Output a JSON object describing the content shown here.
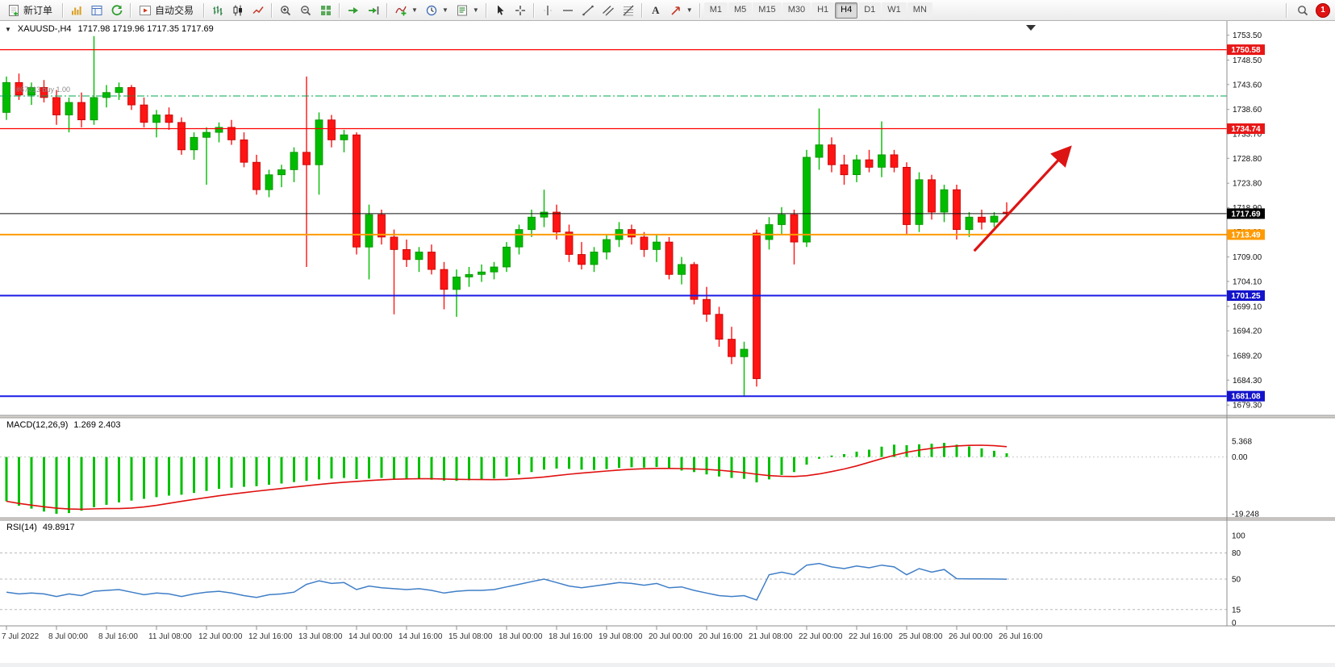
{
  "toolbar": {
    "new_order": "新订单",
    "autotrading": "自动交易",
    "text_tool": "A",
    "timeframes": [
      "M1",
      "M5",
      "M15",
      "M30",
      "H1",
      "H4",
      "D1",
      "W1",
      "MN"
    ],
    "active_timeframe": "H4",
    "badge_count": "1"
  },
  "chart": {
    "title": "XAUUSD-,H4",
    "ohlc": "1717.98 1719.96 1717.35 1717.69",
    "order_label": "#67013 buy 1.00"
  },
  "macd": {
    "label": "MACD(12,26,9)",
    "values": "1.269 2.403"
  },
  "rsi": {
    "label": "RSI(14)",
    "value": "49.8917"
  },
  "chart_data": {
    "type": "candlestick",
    "symbol": "XAUUSD-",
    "timeframe": "H4",
    "colors": {
      "up": "#00bc00",
      "up_edge": "#089000",
      "down": "#ff1414",
      "down_edge": "#c00000",
      "macd_hist": "#00c000",
      "macd_signal": "#e01010",
      "rsi_line": "#3f7ec7",
      "arrow": "#dd1414"
    },
    "price_axis": {
      "max": 1755.7,
      "min": 1678.2
    },
    "y_ticks": [
      "1753.50",
      "1748.50",
      "1743.60",
      "1738.60",
      "1733.70",
      "1728.80",
      "1723.80",
      "1718.90",
      "1714.00",
      "1709.00",
      "1704.10",
      "1699.10",
      "1694.20",
      "1689.20",
      "1684.30",
      "1679.30"
    ],
    "x_label_step": 4,
    "x_labels": [
      "7 Jul 2022",
      "8 Jul 00:00",
      "8 Jul 16:00",
      "11 Jul 08:00",
      "12 Jul 00:00",
      "12 Jul 16:00",
      "13 Jul 08:00",
      "14 Jul 00:00",
      "14 Jul 16:00",
      "15 Jul 08:00",
      "18 Jul 00:00",
      "18 Jul 16:00",
      "19 Jul 08:00",
      "20 Jul 00:00",
      "20 Jul 16:00",
      "21 Jul 08:00",
      "22 Jul 00:00",
      "22 Jul 16:00",
      "25 Jul 08:00",
      "26 Jul 00:00",
      "26 Jul 16:00"
    ],
    "candles": [
      [
        1738.0,
        1745.2,
        1736.5,
        1744.0
      ],
      [
        1744.0,
        1745.8,
        1740.5,
        1741.5
      ],
      [
        1741.5,
        1744.0,
        1739.5,
        1743.0
      ],
      [
        1743.0,
        1744.5,
        1740.0,
        1741.0
      ],
      [
        1741.0,
        1742.5,
        1735.5,
        1737.5
      ],
      [
        1737.5,
        1741.0,
        1734.0,
        1740.0
      ],
      [
        1740.0,
        1742.0,
        1735.0,
        1736.5
      ],
      [
        1736.5,
        1753.3,
        1735.5,
        1741.0
      ],
      [
        1741.0,
        1743.5,
        1739.0,
        1742.0
      ],
      [
        1742.0,
        1744.0,
        1740.5,
        1743.0
      ],
      [
        1743.0,
        1743.5,
        1738.5,
        1739.5
      ],
      [
        1739.5,
        1741.0,
        1735.0,
        1736.0
      ],
      [
        1736.0,
        1738.5,
        1733.0,
        1737.5
      ],
      [
        1737.5,
        1739.0,
        1734.5,
        1736.0
      ],
      [
        1736.0,
        1737.0,
        1729.5,
        1730.5
      ],
      [
        1730.5,
        1734.0,
        1728.5,
        1733.0
      ],
      [
        1733.0,
        1735.0,
        1723.5,
        1734.0
      ],
      [
        1734.0,
        1736.0,
        1732.0,
        1735.0
      ],
      [
        1735.0,
        1736.5,
        1731.5,
        1732.5
      ],
      [
        1732.5,
        1734.0,
        1727.0,
        1728.0
      ],
      [
        1728.0,
        1729.5,
        1721.5,
        1722.5
      ],
      [
        1722.5,
        1726.5,
        1721.0,
        1725.5
      ],
      [
        1725.5,
        1727.5,
        1723.0,
        1726.5
      ],
      [
        1726.5,
        1731.0,
        1724.0,
        1730.0
      ],
      [
        1730.0,
        1745.2,
        1707.0,
        1727.5
      ],
      [
        1727.5,
        1738.0,
        1721.5,
        1736.5
      ],
      [
        1736.5,
        1737.5,
        1731.0,
        1732.5
      ],
      [
        1732.5,
        1734.5,
        1730.0,
        1733.5
      ],
      [
        1733.5,
        1734.0,
        1709.5,
        1711.0
      ],
      [
        1711.0,
        1719.5,
        1704.5,
        1717.5
      ],
      [
        1717.5,
        1718.5,
        1711.5,
        1713.0
      ],
      [
        1713.0,
        1714.5,
        1697.5,
        1710.5
      ],
      [
        1710.5,
        1712.5,
        1707.0,
        1708.5
      ],
      [
        1708.5,
        1711.0,
        1706.0,
        1710.0
      ],
      [
        1710.0,
        1711.5,
        1705.5,
        1706.5
      ],
      [
        1706.5,
        1708.0,
        1698.5,
        1702.5
      ],
      [
        1702.5,
        1706.5,
        1697.0,
        1705.0
      ],
      [
        1705.0,
        1707.0,
        1703.0,
        1705.5
      ],
      [
        1705.5,
        1707.5,
        1704.0,
        1706.0
      ],
      [
        1706.0,
        1708.0,
        1704.5,
        1707.0
      ],
      [
        1707.0,
        1712.0,
        1706.0,
        1711.0
      ],
      [
        1711.0,
        1715.5,
        1709.5,
        1714.5
      ],
      [
        1714.5,
        1718.5,
        1713.0,
        1717.0
      ],
      [
        1717.0,
        1722.5,
        1715.0,
        1718.0
      ],
      [
        1718.0,
        1719.5,
        1712.5,
        1714.0
      ],
      [
        1714.0,
        1715.5,
        1708.0,
        1709.5
      ],
      [
        1709.5,
        1712.0,
        1706.5,
        1707.5
      ],
      [
        1707.5,
        1711.0,
        1706.0,
        1710.0
      ],
      [
        1710.0,
        1713.5,
        1708.5,
        1712.5
      ],
      [
        1712.5,
        1716.0,
        1711.0,
        1714.5
      ],
      [
        1714.5,
        1715.5,
        1711.5,
        1713.0
      ],
      [
        1713.0,
        1714.0,
        1709.0,
        1710.5
      ],
      [
        1710.5,
        1713.5,
        1708.0,
        1712.0
      ],
      [
        1712.0,
        1713.0,
        1704.5,
        1705.5
      ],
      [
        1705.5,
        1709.0,
        1703.5,
        1707.5
      ],
      [
        1707.5,
        1708.0,
        1699.5,
        1700.5
      ],
      [
        1700.5,
        1703.0,
        1696.0,
        1697.5
      ],
      [
        1697.5,
        1699.0,
        1691.0,
        1692.5
      ],
      [
        1692.5,
        1695.0,
        1687.5,
        1689.0
      ],
      [
        1689.0,
        1692.0,
        1681.0,
        1690.5
      ],
      [
        1713.8,
        1714.5,
        1683.0,
        1684.6
      ],
      [
        1712.5,
        1717.0,
        1710.5,
        1715.5
      ],
      [
        1715.5,
        1719.0,
        1713.5,
        1717.5
      ],
      [
        1717.5,
        1718.5,
        1707.5,
        1712.0
      ],
      [
        1712.0,
        1730.5,
        1711.0,
        1729.0
      ],
      [
        1729.0,
        1738.8,
        1726.5,
        1731.5
      ],
      [
        1731.5,
        1733.0,
        1726.0,
        1727.5
      ],
      [
        1727.5,
        1729.5,
        1723.5,
        1725.5
      ],
      [
        1725.5,
        1729.5,
        1724.0,
        1728.5
      ],
      [
        1728.5,
        1730.5,
        1726.0,
        1727.0
      ],
      [
        1727.0,
        1736.2,
        1725.0,
        1729.5
      ],
      [
        1729.5,
        1730.5,
        1726.0,
        1727.0
      ],
      [
        1727.0,
        1728.0,
        1713.5,
        1715.5
      ],
      [
        1715.5,
        1726.0,
        1714.0,
        1724.5
      ],
      [
        1724.5,
        1725.5,
        1716.5,
        1718.0
      ],
      [
        1718.0,
        1723.5,
        1716.0,
        1722.5
      ],
      [
        1722.5,
        1723.5,
        1712.5,
        1714.5
      ],
      [
        1714.5,
        1718.0,
        1713.0,
        1717.0
      ],
      [
        1717.0,
        1718.5,
        1714.5,
        1716.0
      ],
      [
        1716.0,
        1718.0,
        1715.0,
        1717.2
      ],
      [
        1717.98,
        1719.96,
        1717.35,
        1717.69
      ]
    ],
    "hlines": [
      {
        "price": 1750.58,
        "color": "#ff0000",
        "width": 1.2,
        "dash": "",
        "label": "1750.58",
        "box": "#e81717"
      },
      {
        "price": 1741.3,
        "color": "#00a550",
        "width": 1,
        "dash": "9 3 2 3",
        "label": "",
        "box": ""
      },
      {
        "price": 1734.74,
        "color": "#ff0000",
        "width": 1.2,
        "dash": "",
        "label": "1734.74",
        "box": "#e81717"
      },
      {
        "price": 1717.69,
        "color": "#111111",
        "width": 1,
        "dash": "",
        "label": "1717.69",
        "box": "#000000"
      },
      {
        "price": 1713.49,
        "color": "#ff9a00",
        "width": 2,
        "dash": "",
        "label": "1713.49",
        "box": "#ff9a00"
      },
      {
        "price": 1701.25,
        "color": "#1a1ae6",
        "width": 2,
        "dash": "",
        "label": "1701.25",
        "box": "#1414cc"
      },
      {
        "price": 1681.08,
        "color": "#1a1ae6",
        "width": 2,
        "dash": "",
        "label": "1681.08",
        "box": "#1414cc"
      }
    ],
    "macd": {
      "params": "12,26,9",
      "main_value": 1.269,
      "signal_value": 2.403,
      "axis": [
        {
          "value": 5.368,
          "text": "5.368"
        },
        {
          "value": 0,
          "text": "0.00"
        },
        {
          "value": -19.248,
          "text": "-19.248"
        }
      ],
      "range": {
        "max": 5.368,
        "min": -19.248
      },
      "histogram": [
        -15.0,
        -16.5,
        -17.5,
        -18.5,
        -19.248,
        -19.0,
        -18.2,
        -17.0,
        -16.2,
        -15.4,
        -14.8,
        -14.2,
        -13.6,
        -13.1,
        -12.8,
        -12.2,
        -11.5,
        -10.8,
        -10.4,
        -10.1,
        -9.9,
        -9.4,
        -9.0,
        -8.5,
        -8.1,
        -7.6,
        -7.3,
        -7.1,
        -7.5,
        -7.3,
        -7.1,
        -7.4,
        -7.6,
        -7.5,
        -7.7,
        -8.0,
        -8.1,
        -7.9,
        -7.6,
        -7.3,
        -6.7,
        -5.9,
        -5.1,
        -4.3,
        -3.9,
        -4.0,
        -4.3,
        -4.4,
        -4.1,
        -3.7,
        -3.5,
        -3.6,
        -3.4,
        -3.9,
        -4.6,
        -5.1,
        -5.9,
        -6.6,
        -7.1,
        -7.4,
        -8.6,
        -7.6,
        -6.1,
        -5.1,
        -2.6,
        -0.6,
        0.5,
        1.0,
        1.8,
        2.5,
        3.5,
        4.2,
        4.0,
        4.3,
        4.5,
        4.8,
        4.2,
        3.6,
        2.9,
        2.1,
        1.269
      ]
    },
    "rsi": {
      "period": 14,
      "current": 49.8917,
      "levels": [
        80,
        50,
        15
      ],
      "axis": [
        {
          "value": 100,
          "text": "100"
        },
        {
          "value": 80,
          "text": "80"
        },
        {
          "value": 50,
          "text": "50"
        },
        {
          "value": 15,
          "text": "15"
        },
        {
          "value": 0,
          "text": "0"
        }
      ],
      "values": [
        35,
        33,
        34,
        33,
        30,
        33,
        31,
        36,
        37,
        38,
        35,
        32,
        34,
        33,
        30,
        33,
        35,
        36,
        34,
        31,
        29,
        32,
        33,
        35,
        44,
        48,
        45,
        46,
        38,
        42,
        40,
        39,
        38,
        39,
        37,
        34,
        36,
        37,
        37,
        38,
        41,
        44,
        47,
        50,
        46,
        42,
        40,
        42,
        44,
        46,
        45,
        43,
        45,
        40,
        41,
        37,
        34,
        31,
        30,
        31,
        26,
        55,
        58,
        55,
        66,
        68,
        64,
        62,
        65,
        63,
        66,
        64,
        55,
        62,
        58,
        61,
        50.5,
        50.2,
        50.3,
        50.1,
        49.89
      ]
    },
    "annotations": [
      {
        "type": "trend-arrow",
        "color": "#dd1414",
        "from": {
          "candle": 77.4,
          "price": 1710.2
        },
        "to": {
          "candle": 85.0,
          "price": 1730.8
        }
      }
    ]
  }
}
